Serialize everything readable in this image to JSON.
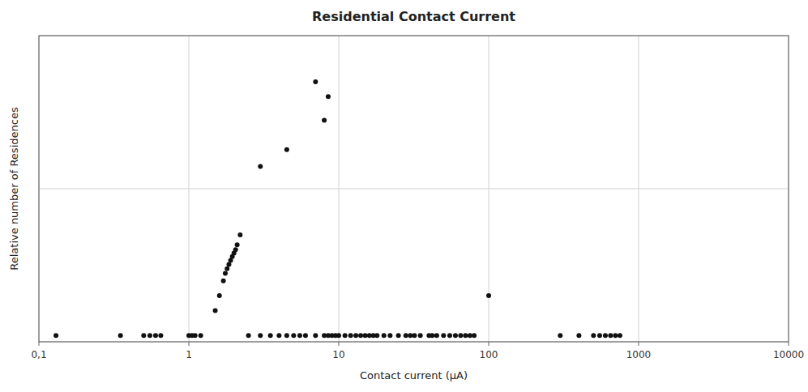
{
  "chart_data": {
    "type": "scatter",
    "title": "Residential Contact Current",
    "x_label": "Contact current (µA)",
    "y_label": "Relative number of Residences",
    "x": [
      0.13,
      0.35,
      0.5,
      0.55,
      0.6,
      0.65,
      1.0,
      1.05,
      1.1,
      1.2,
      1.5,
      1.6,
      1.7,
      1.75,
      1.8,
      1.85,
      1.9,
      1.95,
      2.0,
      2.05,
      2.1,
      2.2,
      2.5,
      3.0,
      3.5,
      4.0,
      4.5,
      5.0,
      5.5,
      6.0,
      7.0,
      8.0,
      8.5,
      9.0,
      9.5,
      10.0,
      11.0,
      12.0,
      13.0,
      14.0,
      15.0,
      16.0,
      17.0,
      18.0,
      20.0,
      22.0,
      25.0,
      28.0,
      30.0,
      32.0,
      35.0,
      40.0,
      42.0,
      45.0,
      50.0,
      55.0,
      60.0,
      65.0,
      70.0,
      75.0,
      80.0,
      100.0,
      300.0,
      400.0,
      500.0,
      550.0,
      600.0,
      650.0,
      700.0,
      750.0,
      7.0,
      8.5,
      3.0,
      4.5,
      8.0
    ],
    "values": [
      0.011,
      0.011,
      0.011,
      0.011,
      0.011,
      0.011,
      0.011,
      0.011,
      0.011,
      0.011,
      0.016,
      0.02,
      0.025,
      0.028,
      0.03,
      0.032,
      0.034,
      0.036,
      0.038,
      0.04,
      0.043,
      0.05,
      0.011,
      0.011,
      0.011,
      0.011,
      0.011,
      0.011,
      0.011,
      0.011,
      0.011,
      0.011,
      0.011,
      0.011,
      0.011,
      0.011,
      0.011,
      0.011,
      0.011,
      0.011,
      0.011,
      0.011,
      0.011,
      0.011,
      0.011,
      0.011,
      0.011,
      0.011,
      0.011,
      0.011,
      0.011,
      0.011,
      0.011,
      0.011,
      0.011,
      0.011,
      0.011,
      0.011,
      0.011,
      0.011,
      0.011,
      0.02,
      0.011,
      0.011,
      0.011,
      0.011,
      0.011,
      0.011,
      0.011,
      0.011,
      0.5,
      0.4,
      0.14,
      0.18,
      0.28
    ],
    "color": "#111111",
    "marker": "circle",
    "xlim": [
      0.1,
      10000
    ],
    "ylim": [
      0.01,
      1.0
    ],
    "xticks": [
      {
        "value": 0.1,
        "label": "0,1"
      },
      1,
      10,
      100,
      1000,
      10000
    ],
    "yticks": [
      0.01,
      0.1,
      1
    ],
    "log": true,
    "grid": true,
    "tick_labels": "x"
  }
}
